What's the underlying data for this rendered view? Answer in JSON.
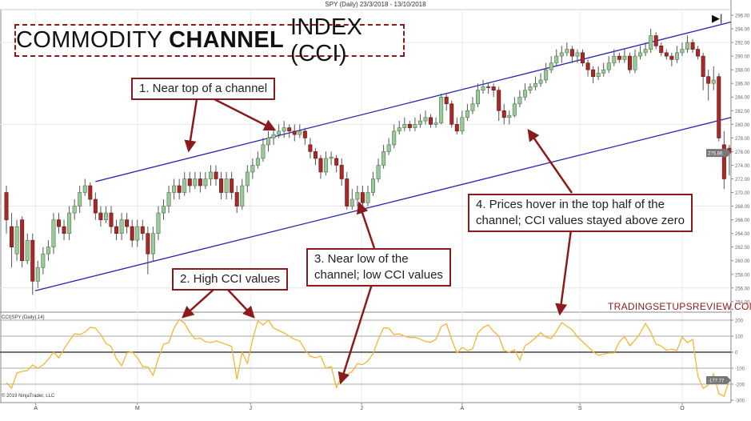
{
  "header": {
    "chart_title": "SPY (Daily)  23/3/2018 - 13/10/2018",
    "skip_to_end_icon": "skip-to-end-icon"
  },
  "annotations": {
    "main_title_pre": "COMMODITY",
    "main_title_bold": "CHANNEL",
    "main_title_post": "INDEX (CCI)",
    "note1": "1. Near top of a channel",
    "note2": "2. High CCI values",
    "note3_line1": "3. Near low of the",
    "note3_line2": "channel; low CCI values",
    "note4_line1": "4. Prices hover in the top half of the",
    "note4_line2": "channel; CCI values stayed above zero",
    "watermark": "TRADINGSETUPSREVIEW.COM",
    "indicator_label": "CCI(SPY (Daily),14)",
    "copyright": "© 2019 NinjaTrader, LLC"
  },
  "colors": {
    "up": "#9cc89c",
    "down": "#a52a2a",
    "wick": "#555555",
    "channel": "#2424b8",
    "cci": "#f0b732",
    "arrow": "#8b1a1a",
    "zero_line": "#444444",
    "level_line": "#aaaaaa"
  },
  "chart_data": [
    {
      "type": "candlestick",
      "title": "SPY (Daily)  23/3/2018 - 13/10/2018",
      "y_range": [
        254,
        296
      ],
      "y_ticks": [
        254,
        256,
        258,
        260,
        262,
        264,
        266,
        268,
        270,
        272,
        274,
        276,
        278,
        280,
        282,
        284,
        286,
        288,
        290,
        292,
        294,
        296
      ],
      "y_tick_format": "2 decimals",
      "last_price_label": "275.86",
      "x_ticks": [
        {
          "label": "A",
          "bar": 5.6
        },
        {
          "label": "M",
          "bar": 25
        },
        {
          "label": "J",
          "bar": 46.6
        },
        {
          "label": "J",
          "bar": 67.8
        },
        {
          "label": "A",
          "bar": 87
        },
        {
          "label": "S",
          "bar": 109.5
        },
        {
          "label": "O",
          "bar": 129
        }
      ],
      "ohlc": [
        [
          270,
          271,
          264,
          266
        ],
        [
          265,
          267,
          259,
          262
        ],
        [
          261,
          266,
          260,
          265
        ],
        [
          266,
          266.5,
          259,
          260
        ],
        [
          260,
          264,
          259.5,
          263
        ],
        [
          263,
          264,
          255,
          257
        ],
        [
          257,
          260,
          256,
          259
        ],
        [
          259,
          262,
          258,
          261
        ],
        [
          261,
          263,
          260,
          262
        ],
        [
          262,
          267,
          261,
          266
        ],
        [
          266,
          267,
          264,
          265
        ],
        [
          265,
          266,
          263,
          264
        ],
        [
          264,
          268,
          263,
          267
        ],
        [
          267,
          269,
          266,
          268
        ],
        [
          268,
          271,
          267,
          270
        ],
        [
          270,
          272,
          269.5,
          271
        ],
        [
          271,
          271.5,
          268,
          269
        ],
        [
          269,
          270,
          266,
          267
        ],
        [
          267,
          268,
          265,
          266
        ],
        [
          266,
          268,
          265.5,
          267
        ],
        [
          267,
          268,
          264,
          265
        ],
        [
          265,
          266,
          263,
          264
        ],
        [
          264,
          267,
          263,
          266
        ],
        [
          266,
          267,
          264,
          265
        ],
        [
          265,
          266,
          262,
          263
        ],
        [
          263,
          266,
          262,
          265
        ],
        [
          265,
          266,
          263,
          264
        ],
        [
          264,
          265,
          258,
          261
        ],
        [
          261,
          265,
          260,
          264
        ],
        [
          264,
          268,
          263,
          267
        ],
        [
          267,
          269,
          266,
          268
        ],
        [
          268,
          271,
          267,
          270
        ],
        [
          270,
          272,
          269,
          271
        ],
        [
          271,
          272,
          269,
          270
        ],
        [
          270,
          273,
          269.5,
          272
        ],
        [
          272,
          273,
          270,
          271
        ],
        [
          271,
          273,
          270.5,
          272
        ],
        [
          272,
          273,
          270,
          271
        ],
        [
          271,
          273,
          270.5,
          272
        ],
        [
          272,
          274,
          271,
          273
        ],
        [
          273,
          274,
          271,
          272
        ],
        [
          272,
          273,
          269,
          270
        ],
        [
          270,
          273,
          269,
          272
        ],
        [
          272,
          273,
          269,
          270
        ],
        [
          270,
          271,
          267,
          268
        ],
        [
          268,
          272,
          267.5,
          271
        ],
        [
          271,
          274,
          270,
          273
        ],
        [
          273,
          275,
          272,
          274
        ],
        [
          274,
          276,
          273.5,
          275
        ],
        [
          275,
          278,
          274.5,
          277
        ],
        [
          277,
          279,
          276,
          278
        ],
        [
          278,
          279.5,
          277,
          278.5
        ],
        [
          278.5,
          280,
          278,
          279
        ],
        [
          279,
          280.5,
          278,
          279.5
        ],
        [
          279.5,
          280,
          278,
          279
        ],
        [
          279,
          280,
          277.5,
          278.5
        ],
        [
          278.5,
          280,
          278,
          279
        ],
        [
          279,
          279.5,
          277,
          278
        ],
        [
          277,
          278,
          275,
          276
        ],
        [
          276,
          276.5,
          274,
          275
        ],
        [
          275,
          275.5,
          272,
          273
        ],
        [
          273,
          276,
          272.5,
          275
        ],
        [
          275,
          276,
          274,
          275.2
        ],
        [
          275,
          275.5,
          273,
          274
        ],
        [
          274,
          275,
          271,
          272
        ],
        [
          272,
          273,
          267.5,
          268
        ],
        [
          268,
          270.5,
          267.5,
          269
        ],
        [
          269,
          271,
          268,
          270
        ],
        [
          270,
          271,
          268,
          268.5
        ],
        [
          268.5,
          271,
          268,
          270
        ],
        [
          270,
          273,
          269.5,
          272
        ],
        [
          272,
          275,
          271.5,
          274
        ],
        [
          274,
          277,
          273.5,
          276
        ],
        [
          276,
          278,
          275.5,
          277
        ],
        [
          277,
          280,
          276.5,
          279
        ],
        [
          279,
          280.5,
          278.5,
          279.5
        ],
        [
          279.5,
          281,
          279,
          280
        ],
        [
          280,
          280.5,
          279,
          279.5
        ],
        [
          279.5,
          281,
          279,
          280
        ],
        [
          280,
          281.5,
          279.5,
          280.5
        ],
        [
          280.5,
          282,
          280,
          281
        ],
        [
          281,
          281.5,
          279.5,
          280
        ],
        [
          280,
          281,
          279.5,
          280.2
        ],
        [
          280.2,
          284.5,
          280,
          284
        ],
        [
          284,
          284.5,
          282,
          283
        ],
        [
          283,
          283.5,
          279.5,
          280
        ],
        [
          280,
          281,
          278.5,
          279
        ],
        [
          279,
          282,
          278.5,
          281
        ],
        [
          281,
          283,
          280.5,
          282
        ],
        [
          282,
          284,
          281.5,
          283
        ],
        [
          283,
          286,
          282.5,
          285
        ],
        [
          285,
          286.5,
          284.5,
          285.5
        ],
        [
          285.5,
          286,
          284.5,
          285.4
        ],
        [
          285.5,
          286,
          284,
          285
        ],
        [
          285,
          285.5,
          280.5,
          282
        ],
        [
          282,
          283,
          280,
          281
        ],
        [
          281,
          282,
          280,
          281.3
        ],
        [
          281.3,
          284,
          281,
          283
        ],
        [
          283,
          285,
          282.5,
          284
        ],
        [
          284,
          286,
          283.5,
          285
        ],
        [
          285,
          286,
          284.5,
          285.5
        ],
        [
          285.5,
          287,
          285,
          286
        ],
        [
          286,
          287.5,
          285.5,
          286.5
        ],
        [
          286.5,
          289,
          286,
          288
        ],
        [
          288,
          290,
          287.5,
          289
        ],
        [
          289,
          291,
          288.5,
          290
        ],
        [
          290,
          291.5,
          289,
          290.5
        ],
        [
          290.5,
          292,
          290,
          291
        ],
        [
          291,
          291.5,
          289,
          290
        ],
        [
          290,
          291,
          289,
          290.5
        ],
        [
          290.5,
          291,
          288.5,
          289
        ],
        [
          289,
          289.5,
          287,
          288
        ],
        [
          288,
          288.5,
          286,
          287
        ],
        [
          287,
          288.5,
          286.5,
          287.5
        ],
        [
          287.5,
          289,
          287,
          288
        ],
        [
          288,
          290,
          287.5,
          289
        ],
        [
          289,
          291,
          288.5,
          290
        ],
        [
          290,
          290.5,
          289,
          289.5
        ],
        [
          289.5,
          291,
          289,
          290
        ],
        [
          290,
          290.5,
          287.5,
          288
        ],
        [
          288,
          291,
          287.5,
          290
        ],
        [
          290,
          291.5,
          289.5,
          290.5
        ],
        [
          290.5,
          292,
          290,
          291
        ],
        [
          291,
          294,
          290.5,
          293
        ],
        [
          293,
          293.5,
          291,
          291.5
        ],
        [
          291.5,
          292,
          290,
          290.5
        ],
        [
          290.5,
          291,
          289.5,
          290
        ],
        [
          290,
          290.5,
          288.5,
          289.5
        ],
        [
          289.5,
          291.5,
          289,
          290.5
        ],
        [
          290.5,
          292,
          290,
          291
        ],
        [
          291,
          293,
          290.5,
          292
        ],
        [
          292,
          292.5,
          290.5,
          291
        ],
        [
          291,
          291.5,
          289.5,
          290
        ],
        [
          290,
          290.5,
          285,
          287
        ],
        [
          287,
          288,
          283.5,
          286
        ],
        [
          286,
          288.5,
          285,
          286.5
        ],
        [
          287,
          287.5,
          277.5,
          278
        ],
        [
          277,
          279,
          270.5,
          272
        ],
        [
          276.5,
          277,
          272.5,
          275.8
        ]
      ],
      "channel_lines": [
        {
          "name": "upper",
          "from": {
            "bar": 17,
            "price": 271.6
          },
          "to": {
            "bar": 139,
            "price": 295
          }
        },
        {
          "name": "lower",
          "from": {
            "bar": 5.5,
            "price": 255.6
          },
          "to": {
            "bar": 139,
            "price": 281
          }
        }
      ]
    },
    {
      "type": "line",
      "series": [
        {
          "name": "CCI(SPY (Daily),14)",
          "values": [
            -190,
            -225,
            -130,
            -120,
            -115,
            -80,
            -100,
            -80,
            -45,
            0,
            -35,
            20,
            70,
            115,
            110,
            125,
            155,
            150,
            110,
            55,
            35,
            -40,
            -85,
            -5,
            2,
            -35,
            -90,
            -92,
            -145,
            -40,
            50,
            60,
            150,
            205,
            180,
            125,
            82,
            88,
            65,
            60,
            70,
            60,
            48,
            36,
            -170,
            0,
            -70,
            80,
            195,
            170,
            200,
            150,
            135,
            120,
            100,
            80,
            70,
            15,
            -25,
            -35,
            -25,
            -100,
            -90,
            -220,
            -155,
            -140,
            -120,
            -72,
            -78,
            -55,
            -10,
            80,
            152,
            150,
            110,
            115,
            100,
            92,
            92,
            82,
            66,
            62,
            80,
            160,
            178,
            80,
            -5,
            30,
            10,
            20,
            120,
            155,
            170,
            130,
            100,
            10,
            0,
            15,
            -50,
            40,
            62,
            90,
            122,
            95,
            85,
            130,
            185,
            162,
            140,
            95,
            65,
            35,
            2,
            -20,
            -12,
            -5,
            -5,
            65,
            98,
            40,
            75,
            120,
            180,
            125,
            50,
            38,
            12,
            20,
            10,
            95,
            60,
            80,
            -150,
            -225,
            -205,
            -135,
            -260,
            -275,
            -175
          ]
        }
      ],
      "y_range": [
        -315,
        250
      ],
      "y_ticks": [
        200,
        100,
        0,
        -100,
        -200,
        -300
      ],
      "level_lines": [
        200,
        100,
        0,
        -100,
        -200
      ],
      "last_value_label": "-177.77"
    }
  ]
}
